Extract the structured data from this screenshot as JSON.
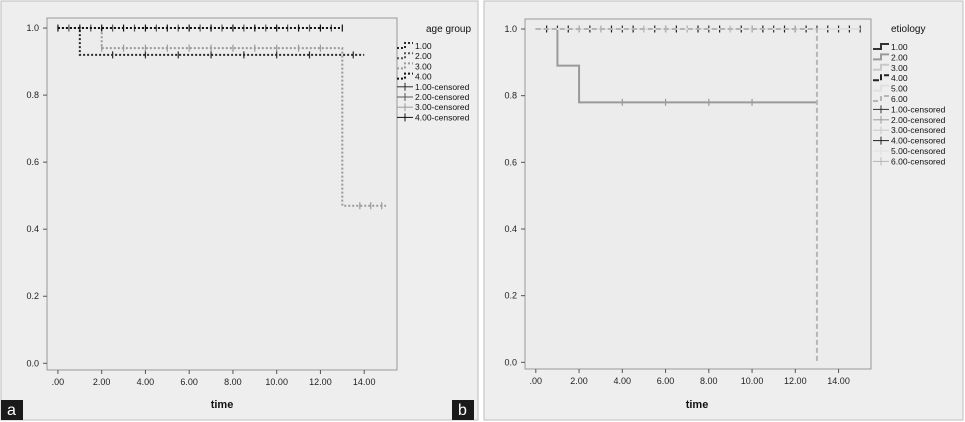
{
  "chart_data": [
    {
      "type": "line",
      "panel_label": "a",
      "title": "",
      "xlabel": "time",
      "ylabel": "",
      "xlim": [
        -0.5,
        15.5
      ],
      "ylim": [
        -0.02,
        1.03
      ],
      "x_ticks": [
        ".00",
        "2.00",
        "4.00",
        "6.00",
        "8.00",
        "10.00",
        "12.00",
        "14.00"
      ],
      "x_tick_values": [
        0,
        2,
        4,
        6,
        8,
        10,
        12,
        14
      ],
      "y_ticks": [
        "0.0",
        "0.2",
        "0.4",
        "0.6",
        "0.8",
        "1.0"
      ],
      "y_tick_values": [
        0,
        0.2,
        0.4,
        0.6,
        0.8,
        1.0
      ],
      "grid": false,
      "legend_position": "right",
      "legend_title": "age group",
      "legend_entries": [
        "1.00",
        "2.00",
        "3.00",
        "4.00",
        "1.00-censored",
        "2.00-censored",
        "3.00-censored",
        "4.00-censored"
      ],
      "series": [
        {
          "name": "1.00",
          "color": "#2a2a2a",
          "dash": "2,2",
          "steps": [
            [
              0,
              1.0
            ],
            [
              1.0,
              0.92
            ],
            [
              14.0,
              0.92
            ]
          ],
          "censored": [
            2.5,
            4,
            5.5,
            7,
            8.5,
            10,
            11.5,
            13.5
          ]
        },
        {
          "name": "2.00",
          "color": "#555555",
          "dash": "2,2",
          "steps": [
            [
              0,
              1.0
            ],
            [
              13.0,
              1.0
            ]
          ],
          "censored": [
            0.5,
            1.5,
            2.5,
            3.5,
            4.5,
            5.5,
            6.5,
            7.5,
            8.5,
            9.5,
            10.5,
            11.5,
            12.5
          ]
        },
        {
          "name": "3.00",
          "color": "#9a9a9a",
          "dash": "2,2",
          "steps": [
            [
              0,
              1.0
            ],
            [
              2.0,
              0.94
            ],
            [
              13.0,
              0.47
            ],
            [
              15.0,
              0.47
            ]
          ],
          "censored": [
            2,
            3,
            4,
            5,
            6,
            7,
            8,
            9,
            10,
            11,
            12,
            13.8,
            14.3,
            14.8
          ]
        },
        {
          "name": "4.00",
          "color": "#111111",
          "dash": "2,2",
          "steps": [
            [
              0,
              1.0
            ],
            [
              13.0,
              1.0
            ]
          ],
          "censored": [
            0,
            1,
            2,
            3,
            4,
            5,
            6,
            7,
            8,
            9,
            10,
            11,
            12,
            13
          ]
        }
      ]
    },
    {
      "type": "line",
      "panel_label": "b",
      "title": "",
      "xlabel": "time",
      "ylabel": "",
      "xlim": [
        -0.5,
        15.5
      ],
      "ylim": [
        -0.02,
        1.03
      ],
      "x_ticks": [
        ".00",
        "2.00",
        "4.00",
        "6.00",
        "8.00",
        "10.00",
        "12.00",
        "14.00"
      ],
      "x_tick_values": [
        0,
        2,
        4,
        6,
        8,
        10,
        12,
        14
      ],
      "y_ticks": [
        "0.0",
        "0.2",
        "0.4",
        "0.6",
        "0.8",
        "1.0"
      ],
      "y_tick_values": [
        0,
        0.2,
        0.4,
        0.6,
        0.8,
        1.0
      ],
      "grid": false,
      "legend_position": "right",
      "legend_title": "etiology",
      "legend_entries": [
        "1.00",
        "2.00",
        "3.00",
        "4.00",
        "5.00",
        "6.00",
        "1.00-censored",
        "2.00-censored",
        "3.00-censored",
        "4.00-censored",
        "5.00-censored",
        "6.00-censored"
      ],
      "series": [
        {
          "name": "1.00",
          "color": "#333333",
          "dash": "",
          "steps": [
            [
              0,
              1.0
            ],
            [
              15.0,
              1.0
            ]
          ],
          "censored": [
            1,
            2,
            3,
            4,
            5,
            6,
            7,
            8,
            9,
            10,
            11,
            12,
            13,
            14,
            15
          ]
        },
        {
          "name": "2.00",
          "color": "#9a9a9a",
          "dash": "",
          "steps": [
            [
              0,
              1.0
            ],
            [
              1.0,
              0.89
            ],
            [
              2.0,
              0.78
            ],
            [
              13.0,
              0.78
            ]
          ],
          "censored": [
            4,
            6,
            8,
            10
          ]
        },
        {
          "name": "3.00",
          "color": "#c8c8c8",
          "dash": "",
          "steps": [
            [
              0,
              1.0
            ],
            [
              11.0,
              1.0
            ]
          ],
          "censored": [
            3,
            5,
            7,
            9
          ]
        },
        {
          "name": "4.00",
          "color": "#222222",
          "dash": "6,2",
          "steps": [
            [
              0,
              1.0
            ],
            [
              15.0,
              1.0
            ]
          ],
          "censored": [
            0.5,
            1.5,
            2.5,
            3.5,
            4.5,
            5.5,
            6.5,
            7.5,
            8.5,
            9.5,
            10.5,
            11.5,
            12.5,
            13.5,
            14.5
          ]
        },
        {
          "name": "5.00",
          "color": "#e0e0e0",
          "dash": "",
          "steps": [
            [
              0,
              1.0
            ],
            [
              15.0,
              1.0
            ]
          ],
          "censored": []
        },
        {
          "name": "6.00",
          "color": "#b5b5b5",
          "dash": "5,3",
          "steps": [
            [
              0,
              1.0
            ],
            [
              13.0,
              1.0
            ],
            [
              13.0,
              0.0
            ]
          ],
          "censored": [
            2,
            6,
            10,
            12
          ]
        }
      ]
    }
  ]
}
